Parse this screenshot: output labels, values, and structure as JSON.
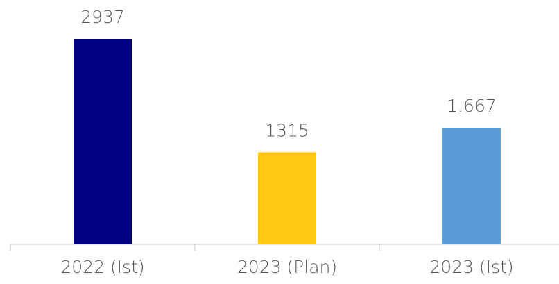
{
  "chart_data": {
    "type": "bar",
    "categories": [
      "2022 (Ist)",
      "2023 (Plan)",
      "2023 (Ist)"
    ],
    "values": [
      2937,
      1315,
      1667
    ],
    "value_labels": [
      "2937",
      "1315",
      "1.667"
    ],
    "colors": [
      "#000080",
      "#fec815",
      "#5b9bd5"
    ]
  }
}
